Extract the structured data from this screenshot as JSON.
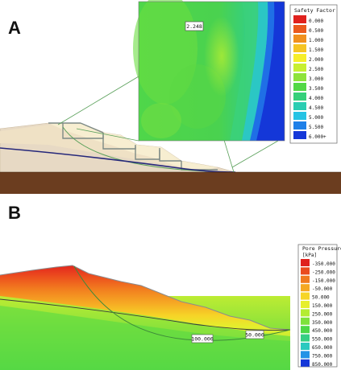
{
  "panelA": {
    "letter": "A",
    "callout_value": "2.248",
    "legend": {
      "title": "Safety Factor",
      "items": [
        {
          "label": "0.000",
          "color": "#e0211d"
        },
        {
          "label": "0.500",
          "color": "#ea5a1e"
        },
        {
          "label": "1.000",
          "color": "#f0901f"
        },
        {
          "label": "1.500",
          "color": "#f5c424"
        },
        {
          "label": "2.000",
          "color": "#f6ee2a"
        },
        {
          "label": "2.500",
          "color": "#c8ef32"
        },
        {
          "label": "3.000",
          "color": "#8ee33a"
        },
        {
          "label": "3.500",
          "color": "#52d845"
        },
        {
          "label": "4.000",
          "color": "#36d07a"
        },
        {
          "label": "4.500",
          "color": "#2bcdb2"
        },
        {
          "label": "5.000",
          "color": "#25c3e4"
        },
        {
          "label": "5.500",
          "color": "#1f80e8"
        },
        {
          "label": "6.000+",
          "color": "#1437d8"
        }
      ]
    }
  },
  "panelB": {
    "letter": "B",
    "contour_labels": [
      "100.000",
      "50.000"
    ],
    "legend": {
      "title": "Pore Pressure",
      "unit": "[kPa]",
      "items": [
        {
          "label": "-350.000",
          "color": "#e0211d"
        },
        {
          "label": "-250.000",
          "color": "#ea4b1e"
        },
        {
          "label": "-150.000",
          "color": "#f07a1f"
        },
        {
          "label": "-50.000",
          "color": "#f5a823"
        },
        {
          "label": "50.000",
          "color": "#f6d527"
        },
        {
          "label": "150.000",
          "color": "#e6ef2d"
        },
        {
          "label": "250.000",
          "color": "#b4ec33"
        },
        {
          "label": "350.000",
          "color": "#7ee23b"
        },
        {
          "label": "450.000",
          "color": "#4cd846"
        },
        {
          "label": "550.000",
          "color": "#35cf83"
        },
        {
          "label": "650.000",
          "color": "#2bc9bf"
        },
        {
          "label": "750.000",
          "color": "#2493e6"
        },
        {
          "label": "850.000",
          "color": "#1437d8"
        }
      ]
    }
  }
}
